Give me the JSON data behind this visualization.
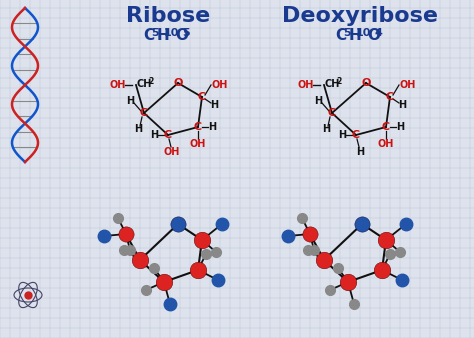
{
  "title_ribose": "Ribose",
  "title_deoxyribose": "Deoxyribose",
  "bg_color": "#dde2ec",
  "grid_color": "#bbc4d8",
  "title_color": "#1a3a8f",
  "formula_color": "#1a3a8f",
  "red_color": "#cc1111",
  "black_color": "#111111",
  "blue_atom": "#2255aa",
  "red_atom": "#dd2222",
  "gray_atom": "#888888",
  "ribose_formula": [
    "C",
    "5",
    "H",
    "10",
    "O",
    "5"
  ],
  "deoxy_formula": [
    "C",
    "5",
    "H",
    "10",
    "O",
    "4"
  ]
}
